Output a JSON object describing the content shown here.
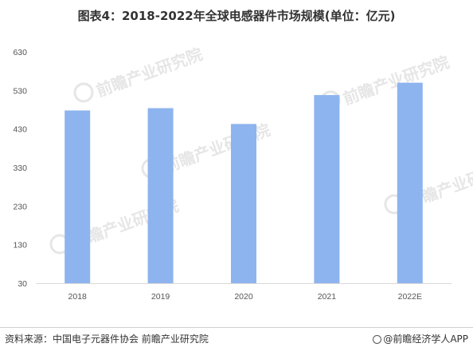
{
  "title": "图表4：2018-2022年全球电感器件市场规模(单位：亿元)",
  "footer": {
    "source": "资料来源：中国电子元器件协会 前瞻产业研究院",
    "brand": "@前瞻经济学人APP"
  },
  "watermark_text": "前瞻产业研究院",
  "colors": {
    "bar": "#8db4ee",
    "axis": "#d9d9d9",
    "text": "#333333",
    "watermark": "#e6e6e6"
  },
  "chart_data": {
    "type": "bar",
    "title": "图表4：2018-2022年全球电感器件市场规模(单位：亿元)",
    "categories": [
      "2018",
      "2019",
      "2020",
      "2021",
      "2022E"
    ],
    "values": [
      478,
      484,
      443,
      518,
      550
    ],
    "xlabel": "",
    "ylabel": "",
    "ylim": [
      30,
      630
    ],
    "yticks": [
      30,
      130,
      230,
      330,
      430,
      530,
      630
    ],
    "grid": false,
    "legend": "none"
  }
}
